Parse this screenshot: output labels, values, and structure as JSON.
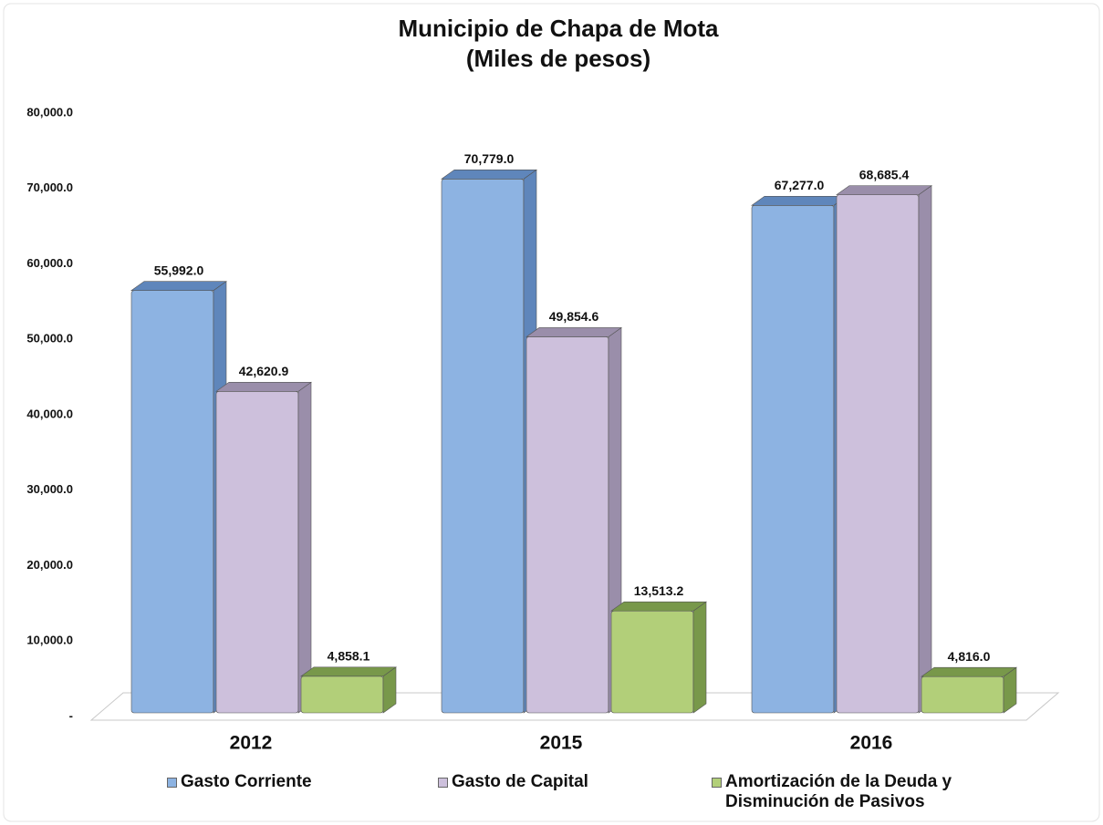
{
  "chart_data": {
    "type": "bar3d",
    "title": "Municipio de Chapa de Mota",
    "subtitle": "(Miles de pesos)",
    "categories": [
      "2012",
      "2015",
      "2016"
    ],
    "series": [
      {
        "name": "Gasto Corriente",
        "color": "#8db3e2",
        "side": "#5f86bb",
        "values": [
          55992.0,
          70779.0,
          67277.0
        ],
        "value_labels": [
          "55,992.0",
          "70,779.0",
          "67,277.0"
        ]
      },
      {
        "name": "Gasto de Capital",
        "color": "#cdc0dc",
        "side": "#9a8eaa",
        "values": [
          42620.9,
          49854.6,
          68685.4
        ],
        "value_labels": [
          "42,620.9",
          "49,854.6",
          "68,685.4"
        ]
      },
      {
        "name": "Amortización de la Deuda y Disminución de Pasivos",
        "color": "#b2cf79",
        "side": "#78984a",
        "values": [
          4858.1,
          13513.2,
          4816.0
        ],
        "value_labels": [
          "4,858.1",
          "13,513.2",
          "4,816.0"
        ]
      }
    ],
    "ylim": [
      0,
      80000
    ],
    "yticks": [
      {
        "value": 0,
        "label": "-"
      },
      {
        "value": 10000,
        "label": "10,000.0"
      },
      {
        "value": 20000,
        "label": "20,000.0"
      },
      {
        "value": 30000,
        "label": "30,000.0"
      },
      {
        "value": 40000,
        "label": "40,000.0"
      },
      {
        "value": 50000,
        "label": "50,000.0"
      },
      {
        "value": 60000,
        "label": "60,000.0"
      },
      {
        "value": 70000,
        "label": "70,000.0"
      },
      {
        "value": 80000,
        "label": "80,000.0"
      }
    ],
    "legend": "bottom"
  }
}
